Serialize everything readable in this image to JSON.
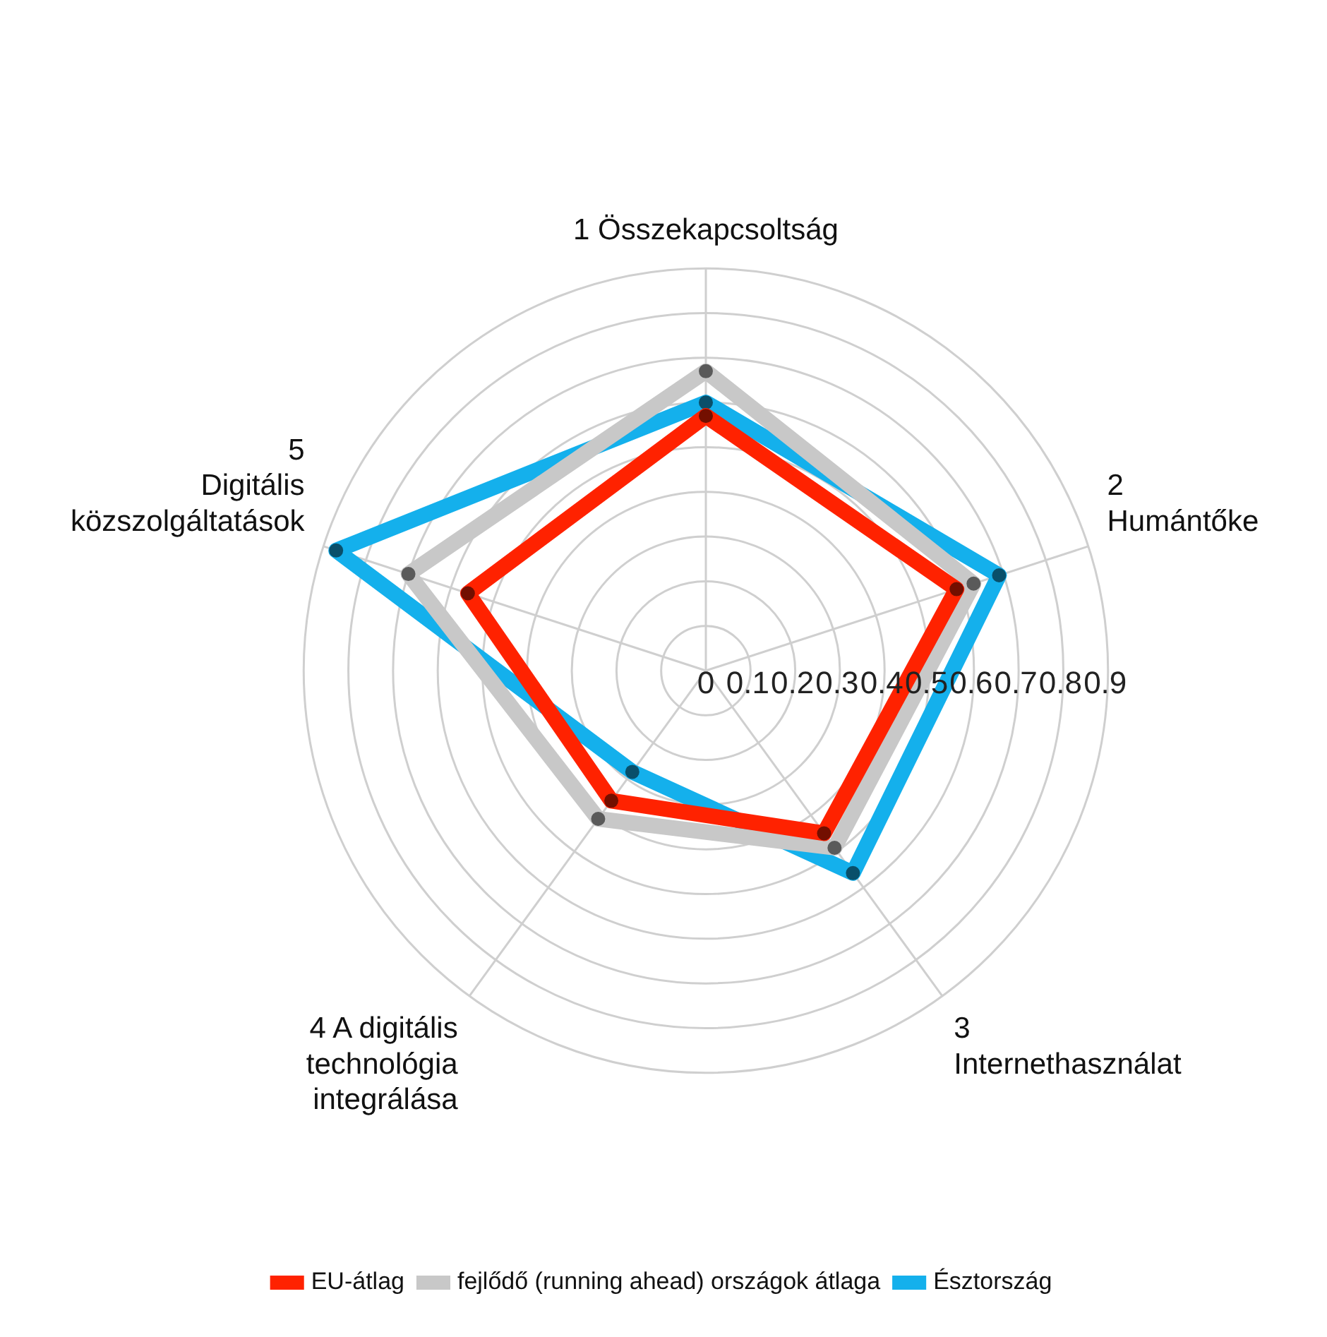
{
  "chart_data": {
    "type": "radar",
    "categories": [
      "1 Összekapcsoltság",
      "2\nHumántőke",
      "3\nInternethasználat",
      "4 A digitális\ntechnológia\nintegrálása",
      "5\nDigitális\nközszolgáltatások"
    ],
    "series": [
      {
        "name": "EU-átlag",
        "color": "#ff2200",
        "values": [
          0.57,
          0.59,
          0.45,
          0.36,
          0.56
        ]
      },
      {
        "name": "fejlődő (running ahead) országok átlaga",
        "color": "#c8c8c8",
        "values": [
          0.67,
          0.63,
          0.49,
          0.41,
          0.7
        ]
      },
      {
        "name": "Észtország",
        "color": "#14b0ec",
        "values": [
          0.6,
          0.69,
          0.56,
          0.28,
          0.87
        ]
      }
    ],
    "ylim": [
      0,
      0.9
    ],
    "yticks": [
      0,
      0.1,
      0.2,
      0.3,
      0.4,
      0.5,
      0.6,
      0.7,
      0.8,
      0.9
    ],
    "grid": true,
    "legend": "bottom",
    "marker": "circle"
  }
}
